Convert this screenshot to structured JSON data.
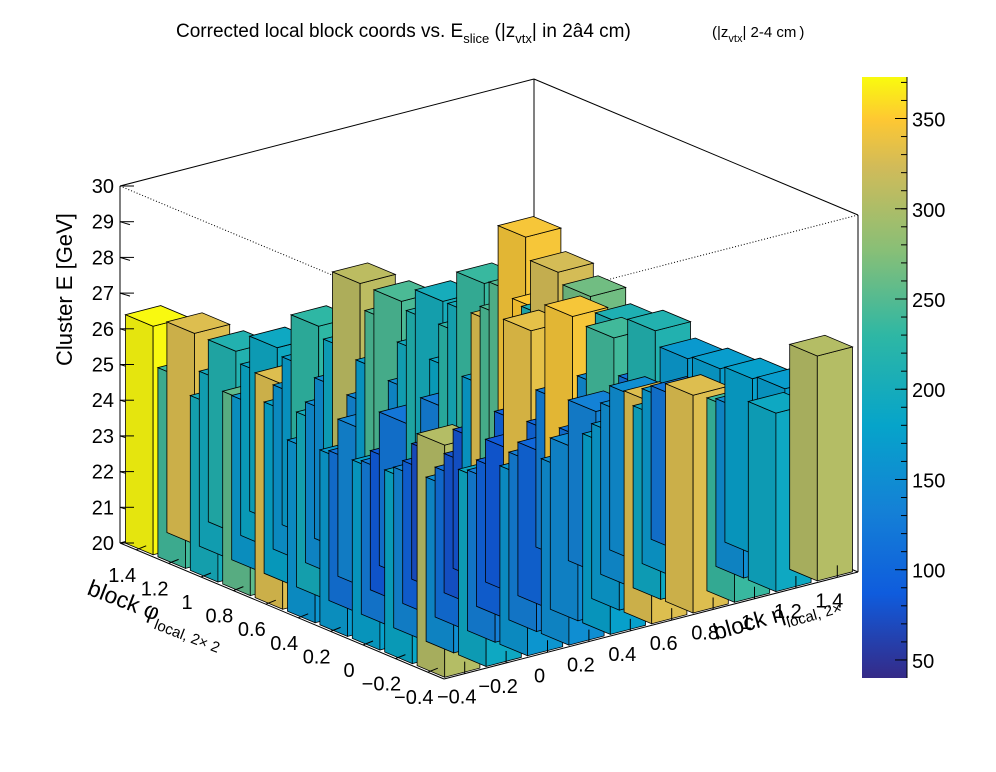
{
  "chart_data": {
    "type": "bar3d",
    "title": "Corrected local block coords vs. E",
    "title_sub": "slice",
    "title_mid": " (|z",
    "title_sub2": "vtx",
    "title_rest": "| in 2â4 cm)",
    "title_extra_pre": "(|z",
    "title_extra_sub": "vtx",
    "title_extra_post": "| 2-4 cm",
    "title_extra_close": ")",
    "zlabel": "Cluster E  [GeV]",
    "xlabel_main": "block η",
    "xlabel_sub": "local, 2×",
    "ylabel_main": "block φ",
    "ylabel_sub": "local, 2× 2",
    "z_ticks": [
      "20",
      "21",
      "22",
      "23",
      "24",
      "25",
      "26",
      "27",
      "28",
      "29",
      "30"
    ],
    "zlim": [
      20,
      30
    ],
    "x_ticks": [
      "−0.4",
      "−0.2",
      "0",
      "0.2",
      "0.4",
      "0.6",
      "0.8",
      "1",
      "1.2",
      "1.4"
    ],
    "y_ticks": [
      "−0.4",
      "−0.2",
      "0",
      "0.2",
      "0.4",
      "0.6",
      "0.8",
      "1",
      "1.2",
      "1.4"
    ],
    "xlim": [
      -0.5,
      1.5
    ],
    "ylim": [
      -0.5,
      1.5
    ],
    "colorbar_ticks": [
      "50",
      "100",
      "150",
      "200",
      "250",
      "300",
      "350"
    ],
    "colorbar_range": [
      40,
      373
    ],
    "x_centers": [
      -0.4,
      -0.2,
      0.0,
      0.2,
      0.4,
      0.6,
      0.8,
      1.0,
      1.2,
      1.4
    ],
    "y_centers": [
      -0.4,
      -0.2,
      0.0,
      0.2,
      0.4,
      0.6,
      0.8,
      1.0,
      1.2,
      1.4
    ],
    "values_note": "z = cluster energy (GeV, bar height above 20); c = counts (colour)",
    "bins": [
      {
        "x": -0.4,
        "y": -0.4,
        "z": 26.5,
        "c": 305
      },
      {
        "x": -0.2,
        "y": -0.4,
        "z": 25.2,
        "c": 190
      },
      {
        "x": 0.0,
        "y": -0.4,
        "z": 25.0,
        "c": 160
      },
      {
        "x": 0.2,
        "y": -0.4,
        "z": 24.9,
        "c": 150
      },
      {
        "x": 0.4,
        "y": -0.4,
        "z": 25.3,
        "c": 175
      },
      {
        "x": 0.6,
        "y": -0.4,
        "z": 26.2,
        "c": 330
      },
      {
        "x": 0.8,
        "y": -0.4,
        "z": 26.1,
        "c": 330
      },
      {
        "x": 1.0,
        "y": -0.4,
        "z": 25.4,
        "c": 235
      },
      {
        "x": 1.2,
        "y": -0.4,
        "z": 25.0,
        "c": 190
      },
      {
        "x": 1.4,
        "y": -0.4,
        "z": 26.3,
        "c": 305
      },
      {
        "x": -0.4,
        "y": -0.2,
        "z": 25.1,
        "c": 185
      },
      {
        "x": -0.2,
        "y": -0.2,
        "z": 24.6,
        "c": 150
      },
      {
        "x": 0.0,
        "y": -0.2,
        "z": 24.5,
        "c": 130
      },
      {
        "x": 0.2,
        "y": -0.2,
        "z": 24.7,
        "c": 130
      },
      {
        "x": 0.4,
        "y": -0.2,
        "z": 24.8,
        "c": 145
      },
      {
        "x": 0.6,
        "y": -0.2,
        "z": 24.9,
        "c": 165
      },
      {
        "x": 0.8,
        "y": -0.2,
        "z": 25.1,
        "c": 190
      },
      {
        "x": 1.0,
        "y": -0.2,
        "z": 25.2,
        "c": 185
      },
      {
        "x": 1.2,
        "y": -0.2,
        "z": 24.7,
        "c": 150
      },
      {
        "x": 1.4,
        "y": -0.2,
        "z": 25.0,
        "c": 170
      },
      {
        "x": -0.4,
        "y": 0.0,
        "z": 25.0,
        "c": 175
      },
      {
        "x": -0.2,
        "y": 0.0,
        "z": 24.5,
        "c": 140
      },
      {
        "x": 0.0,
        "y": 0.0,
        "z": 24.2,
        "c": 110
      },
      {
        "x": 0.2,
        "y": 0.0,
        "z": 24.1,
        "c": 95
      },
      {
        "x": 0.4,
        "y": 0.0,
        "z": 24.3,
        "c": 100
      },
      {
        "x": 0.6,
        "y": 0.0,
        "z": 24.4,
        "c": 115
      },
      {
        "x": 0.8,
        "y": 0.0,
        "z": 24.8,
        "c": 150
      },
      {
        "x": 1.0,
        "y": 0.0,
        "z": 24.9,
        "c": 165
      },
      {
        "x": 1.2,
        "y": 0.0,
        "z": 24.4,
        "c": 130
      },
      {
        "x": 1.4,
        "y": 0.0,
        "z": 24.9,
        "c": 175
      },
      {
        "x": -0.4,
        "y": 0.2,
        "z": 24.9,
        "c": 165
      },
      {
        "x": -0.2,
        "y": 0.2,
        "z": 24.3,
        "c": 125
      },
      {
        "x": 0.0,
        "y": 0.2,
        "z": 24.0,
        "c": 95
      },
      {
        "x": 0.2,
        "y": 0.2,
        "z": 23.9,
        "c": 80
      },
      {
        "x": 0.4,
        "y": 0.2,
        "z": 24.0,
        "c": 85
      },
      {
        "x": 0.6,
        "y": 0.2,
        "z": 24.2,
        "c": 100
      },
      {
        "x": 0.8,
        "y": 0.2,
        "z": 24.5,
        "c": 135
      },
      {
        "x": 1.0,
        "y": 0.2,
        "z": 24.6,
        "c": 150
      },
      {
        "x": 1.2,
        "y": 0.2,
        "z": 24.3,
        "c": 120
      },
      {
        "x": 1.4,
        "y": 0.2,
        "z": 24.8,
        "c": 170
      },
      {
        "x": -0.4,
        "y": 0.4,
        "z": 24.8,
        "c": 160
      },
      {
        "x": -0.2,
        "y": 0.4,
        "z": 24.2,
        "c": 115
      },
      {
        "x": 0.0,
        "y": 0.4,
        "z": 23.9,
        "c": 85
      },
      {
        "x": 0.2,
        "y": 0.4,
        "z": 23.8,
        "c": 75
      },
      {
        "x": 0.4,
        "y": 0.4,
        "z": 23.9,
        "c": 80
      },
      {
        "x": 0.6,
        "y": 0.4,
        "z": 24.1,
        "c": 95
      },
      {
        "x": 0.8,
        "y": 0.4,
        "z": 24.4,
        "c": 130
      },
      {
        "x": 1.0,
        "y": 0.4,
        "z": 24.5,
        "c": 145
      },
      {
        "x": 1.2,
        "y": 0.4,
        "z": 24.2,
        "c": 115
      },
      {
        "x": 1.4,
        "y": 0.4,
        "z": 24.7,
        "c": 165
      },
      {
        "x": -0.4,
        "y": 0.6,
        "z": 26.3,
        "c": 330
      },
      {
        "x": -0.2,
        "y": 0.6,
        "z": 24.9,
        "c": 200
      },
      {
        "x": 0.0,
        "y": 0.6,
        "z": 24.4,
        "c": 140
      },
      {
        "x": 0.2,
        "y": 0.6,
        "z": 24.3,
        "c": 120
      },
      {
        "x": 0.4,
        "y": 0.6,
        "z": 24.4,
        "c": 130
      },
      {
        "x": 0.6,
        "y": 0.6,
        "z": 24.7,
        "c": 170
      },
      {
        "x": 0.8,
        "y": 0.6,
        "z": 26.0,
        "c": 335
      },
      {
        "x": 1.0,
        "y": 0.6,
        "z": 26.1,
        "c": 345
      },
      {
        "x": 1.2,
        "y": 0.6,
        "z": 25.2,
        "c": 240
      },
      {
        "x": 1.4,
        "y": 0.6,
        "z": 25.1,
        "c": 215
      },
      {
        "x": -0.4,
        "y": 0.8,
        "z": 25.4,
        "c": 255
      },
      {
        "x": -0.2,
        "y": 0.8,
        "z": 24.8,
        "c": 180
      },
      {
        "x": 0.0,
        "y": 0.8,
        "z": 24.5,
        "c": 150
      },
      {
        "x": 0.2,
        "y": 0.8,
        "z": 24.4,
        "c": 140
      },
      {
        "x": 0.4,
        "y": 0.8,
        "z": 24.5,
        "c": 150
      },
      {
        "x": 0.6,
        "y": 0.8,
        "z": 24.8,
        "c": 185
      },
      {
        "x": 0.8,
        "y": 0.8,
        "z": 25.8,
        "c": 330
      },
      {
        "x": 1.0,
        "y": 0.8,
        "z": 25.9,
        "c": 350
      },
      {
        "x": 1.2,
        "y": 0.8,
        "z": 25.0,
        "c": 235
      },
      {
        "x": 1.4,
        "y": 0.8,
        "z": 24.9,
        "c": 210
      },
      {
        "x": -0.4,
        "y": 1.0,
        "z": 24.9,
        "c": 200
      },
      {
        "x": -0.2,
        "y": 1.0,
        "z": 24.6,
        "c": 165
      },
      {
        "x": 0.0,
        "y": 1.0,
        "z": 24.6,
        "c": 160
      },
      {
        "x": 0.2,
        "y": 1.0,
        "z": 24.5,
        "c": 150
      },
      {
        "x": 0.4,
        "y": 1.0,
        "z": 24.7,
        "c": 170
      },
      {
        "x": 0.6,
        "y": 1.0,
        "z": 24.9,
        "c": 195
      },
      {
        "x": 0.8,
        "y": 1.0,
        "z": 25.1,
        "c": 225
      },
      {
        "x": 1.0,
        "y": 1.0,
        "z": 25.3,
        "c": 245
      },
      {
        "x": 1.2,
        "y": 1.0,
        "z": 25.0,
        "c": 210
      },
      {
        "x": 1.4,
        "y": 1.0,
        "z": 25.3,
        "c": 265
      },
      {
        "x": -0.4,
        "y": 1.2,
        "z": 25.3,
        "c": 240
      },
      {
        "x": -0.2,
        "y": 1.2,
        "z": 24.9,
        "c": 195
      },
      {
        "x": 0.0,
        "y": 1.2,
        "z": 24.8,
        "c": 185
      },
      {
        "x": 0.2,
        "y": 1.2,
        "z": 24.7,
        "c": 170
      },
      {
        "x": 0.4,
        "y": 1.2,
        "z": 24.9,
        "c": 190
      },
      {
        "x": 0.6,
        "y": 1.2,
        "z": 25.4,
        "c": 245
      },
      {
        "x": 0.8,
        "y": 1.2,
        "z": 25.1,
        "c": 215
      },
      {
        "x": 1.0,
        "y": 1.2,
        "z": 25.0,
        "c": 200
      },
      {
        "x": 1.2,
        "y": 1.2,
        "z": 25.3,
        "c": 250
      },
      {
        "x": 1.4,
        "y": 1.2,
        "z": 25.6,
        "c": 325
      },
      {
        "x": -0.4,
        "y": 1.4,
        "z": 26.4,
        "c": 372
      },
      {
        "x": -0.2,
        "y": 1.4,
        "z": 25.9,
        "c": 330
      },
      {
        "x": 0.0,
        "y": 1.4,
        "z": 25.1,
        "c": 215
      },
      {
        "x": 0.2,
        "y": 1.4,
        "z": 24.9,
        "c": 190
      },
      {
        "x": 0.4,
        "y": 1.4,
        "z": 25.2,
        "c": 230
      },
      {
        "x": 0.6,
        "y": 1.4,
        "z": 26.1,
        "c": 310
      },
      {
        "x": 0.8,
        "y": 1.4,
        "z": 25.3,
        "c": 245
      },
      {
        "x": 1.0,
        "y": 1.4,
        "z": 25.0,
        "c": 200
      },
      {
        "x": 1.2,
        "y": 1.4,
        "z": 25.2,
        "c": 235
      },
      {
        "x": 1.4,
        "y": 1.4,
        "z": 26.2,
        "c": 345
      }
    ]
  }
}
